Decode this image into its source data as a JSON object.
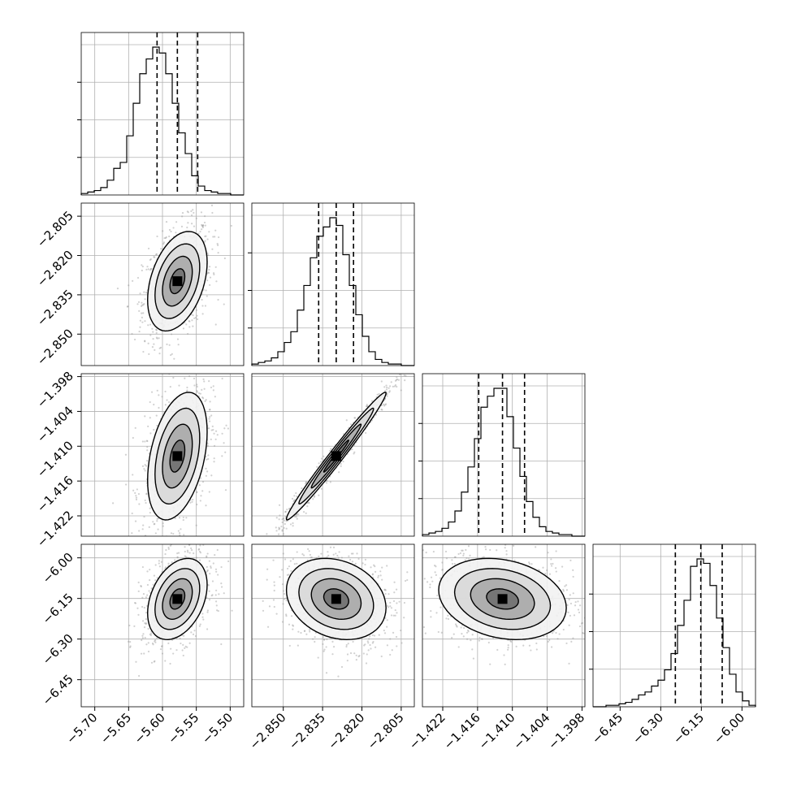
{
  "chart_data": {
    "type": "corner",
    "params": [
      {
        "range": [
          -5.72,
          -5.48
        ],
        "ticks": [
          -5.7,
          -5.65,
          -5.6,
          -5.55,
          -5.5
        ],
        "tick_labels": [
          "−5.70",
          "−5.65",
          "−5.60",
          "−5.55",
          "−5.50"
        ],
        "quantiles": [
          -5.608,
          -5.578,
          -5.548
        ],
        "hist_counts": [
          1,
          2,
          3,
          5,
          10,
          18,
          22,
          40,
          62,
          82,
          92,
          100,
          96,
          82,
          62,
          42,
          28,
          13,
          6,
          3,
          2,
          1,
          1,
          0,
          0
        ]
      },
      {
        "range": [
          -2.862,
          -2.8
        ],
        "ticks": [
          -2.85,
          -2.835,
          -2.82,
          -2.805
        ],
        "tick_labels": [
          "−2.850",
          "−2.835",
          "−2.820",
          "−2.805"
        ],
        "quantiles": [
          -2.8365,
          -2.8298,
          -2.8232
        ],
        "hist_counts": [
          1,
          2,
          3,
          5,
          9,
          15,
          22,
          36,
          52,
          70,
          84,
          90,
          96,
          91,
          72,
          52,
          33,
          19,
          9,
          4,
          2,
          1,
          1,
          0,
          0
        ]
      },
      {
        "range": [
          -1.4255,
          -1.3975
        ],
        "ticks": [
          -1.422,
          -1.416,
          -1.41,
          -1.404,
          -1.398
        ],
        "tick_labels": [
          "−1.422",
          "−1.416",
          "−1.410",
          "−1.404",
          "−1.398"
        ],
        "quantiles": [
          -1.4158,
          -1.4117,
          -1.4079
        ],
        "hist_counts": [
          1,
          2,
          3,
          5,
          9,
          16,
          28,
          44,
          62,
          82,
          89,
          94,
          94,
          76,
          56,
          38,
          22,
          12,
          6,
          3,
          2,
          1,
          1,
          0,
          0
        ]
      },
      {
        "range": [
          -6.55,
          -5.95
        ],
        "ticks": [
          -6.45,
          -6.3,
          -6.15,
          -6.0
        ],
        "tick_labels": [
          "−6.45",
          "−6.30",
          "−6.15",
          "−6.00"
        ],
        "quantiles": [
          -6.246,
          -6.152,
          -6.073
        ],
        "hist_counts": [
          0,
          0,
          1,
          1,
          2,
          3,
          5,
          8,
          10,
          14,
          18,
          25,
          36,
          55,
          72,
          95,
          100,
          97,
          82,
          60,
          40,
          22,
          10,
          4,
          1
        ]
      }
    ],
    "pairs": [
      {
        "row": 1,
        "col": 0,
        "center": [
          -5.578,
          -2.8298
        ],
        "sigma": [
          0.022,
          0.0095
        ],
        "rho": 0.38
      },
      {
        "row": 2,
        "col": 0,
        "center": [
          -5.578,
          -1.4117
        ],
        "sigma": [
          0.022,
          0.0055
        ],
        "rho": 0.38
      },
      {
        "row": 2,
        "col": 1,
        "center": [
          -2.8298,
          -1.4117
        ],
        "sigma": [
          0.0095,
          0.0055
        ],
        "rho": 0.985
      },
      {
        "row": 3,
        "col": 0,
        "center": [
          -5.578,
          -6.152
        ],
        "sigma": [
          0.022,
          0.075
        ],
        "rho": 0.35
      },
      {
        "row": 3,
        "col": 1,
        "center": [
          -2.8298,
          -6.152
        ],
        "sigma": [
          0.0095,
          0.075
        ],
        "rho": -0.22
      },
      {
        "row": 3,
        "col": 2,
        "center": [
          -1.4117,
          -6.152
        ],
        "sigma": [
          0.0055,
          0.075
        ],
        "rho": -0.22
      }
    ],
    "contour_levels_sigma": [
      0.5,
      1.0,
      1.5,
      2.0
    ],
    "grid": true,
    "colors": {
      "axis": "#000000",
      "grid": "#b0b0b0",
      "scatter": "#9a9a9a",
      "contour": "#000000"
    }
  }
}
